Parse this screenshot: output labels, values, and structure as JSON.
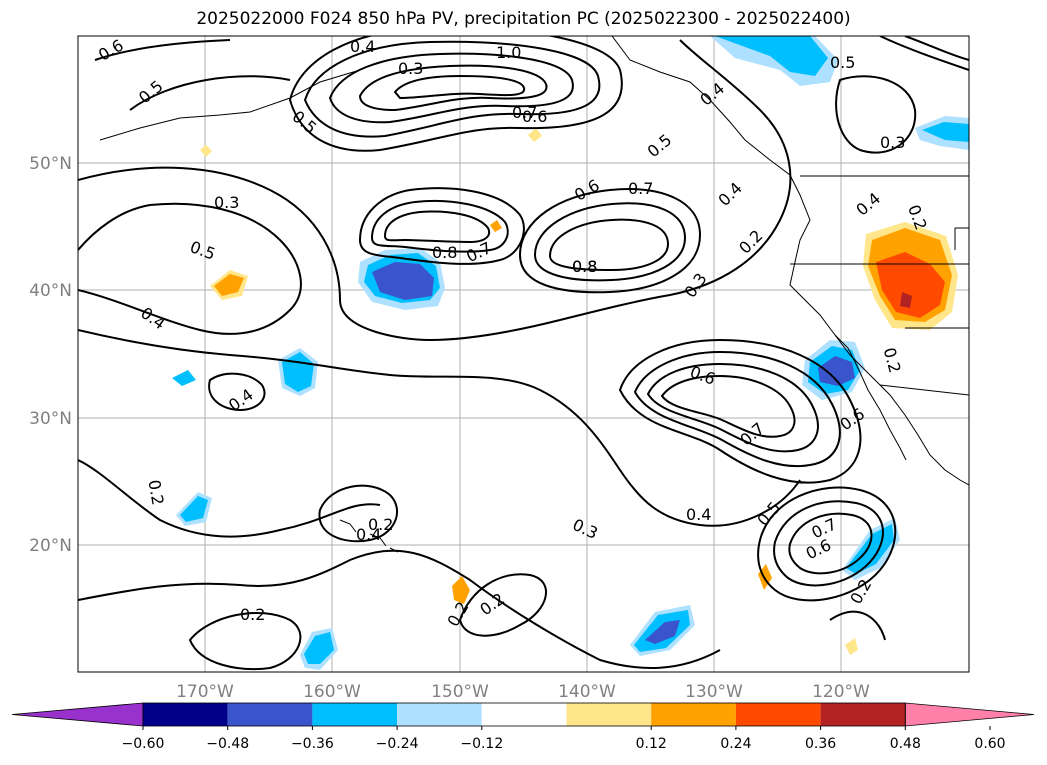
{
  "title": "2025022000 F024 850 hPa PV, precipitation PC (2025022300 - 2025022400)",
  "map": {
    "lon_ticks": [
      "170°W",
      "160°W",
      "150°W",
      "140°W",
      "130°W",
      "120°W"
    ],
    "lat_ticks": [
      "50°N",
      "40°N",
      "30°N",
      "20°N"
    ],
    "contour_labels": [
      "0.6",
      "0.4",
      "0.5",
      "0.5",
      "1.0",
      "0.3",
      "0.6",
      "0.5",
      "0.4",
      "0.5",
      "0.7",
      "0.8",
      "0.3",
      "0.3",
      "0.4",
      "0.5",
      "0.8",
      "0.7",
      "0.6",
      "0.7",
      "0.8",
      "0.4",
      "0.2",
      "0.3",
      "0.4",
      "0.4",
      "0.4",
      "0.2",
      "0.6",
      "0.7",
      "0.6",
      "0.2",
      "0.4",
      "0.5",
      "0.3",
      "0.7",
      "0.6",
      "0.2",
      "0.2",
      "0.2",
      "0.2",
      "0.2",
      "0.2"
    ],
    "colors": {
      "land_outline": "#000000",
      "grid": "#b0b0b0",
      "pos_light": "#ffe68a",
      "pos_mid": "#ffa200",
      "pos_strong": "#ff4a00",
      "pos_max": "#b22222",
      "neg_light": "#aee0ff",
      "neg_mid": "#00bfff",
      "neg_strong": "#3a55cc"
    }
  },
  "colorbar": {
    "ticks": [
      "−0.60",
      "−0.48",
      "−0.36",
      "−0.24",
      "−0.12",
      "0.12",
      "0.24",
      "0.36",
      "0.48",
      "0.60"
    ],
    "colors": [
      "#9932cc",
      "#00008b",
      "#3a55cc",
      "#00bfff",
      "#aee0ff",
      "#ffffff",
      "#ffe68a",
      "#ffa200",
      "#ff4a00",
      "#b22222",
      "#ff80a8"
    ]
  }
}
